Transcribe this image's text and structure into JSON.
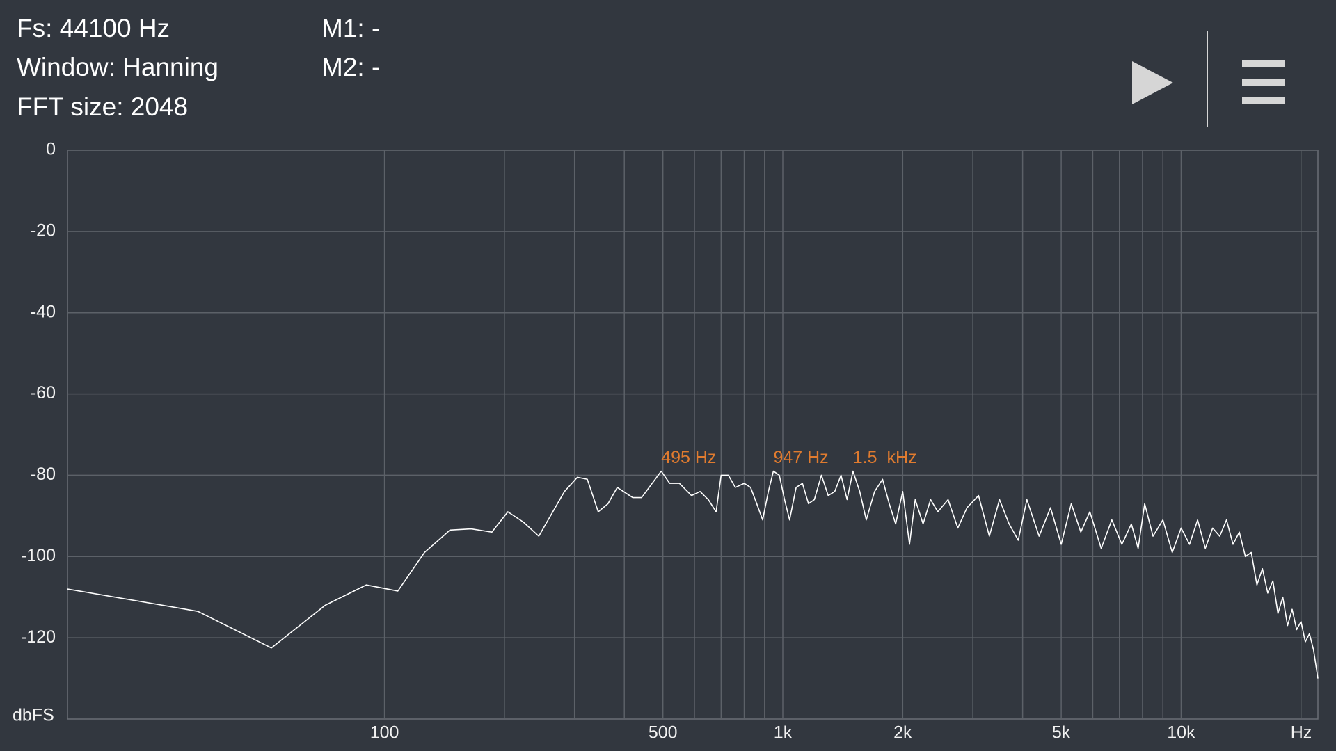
{
  "status": [
    "Fs: 44100 Hz",
    "Window: Hanning",
    "FFT size: 2048"
  ],
  "markers": [
    "M1: -",
    "M2: -"
  ],
  "chart_data": {
    "type": "line",
    "x_label": "Hz",
    "y_label": "dbFS",
    "xscale": "log",
    "xlim": [
      16,
      22050
    ],
    "ylim": [
      -140,
      0
    ],
    "xticks": [
      100,
      500,
      {
        "value": 1000,
        "label": "1k"
      },
      {
        "value": 2000,
        "label": "2k"
      },
      {
        "value": 5000,
        "label": "5k"
      },
      {
        "value": 10000,
        "label": "10k"
      }
    ],
    "xminor": [
      200,
      300,
      400,
      600,
      700,
      800,
      900,
      3000,
      4000,
      6000,
      7000,
      8000,
      9000,
      20000
    ],
    "yticks": [
      0,
      -20,
      -40,
      -60,
      -80,
      -100,
      -120
    ],
    "grid": true,
    "color": "#ffffff",
    "x": [
      16,
      34,
      52,
      71,
      90,
      108,
      126,
      146,
      165,
      186,
      204,
      223,
      244,
      283,
      305,
      323,
      344,
      364,
      384,
      420,
      442,
      495,
      520,
      550,
      590,
      620,
      650,
      680,
      700,
      730,
      760,
      800,
      830,
      860,
      890,
      920,
      947,
      980,
      1010,
      1040,
      1080,
      1120,
      1160,
      1200,
      1250,
      1300,
      1350,
      1400,
      1450,
      1500,
      1560,
      1620,
      1700,
      1780,
      1850,
      1920,
      2000,
      2080,
      2150,
      2250,
      2350,
      2450,
      2600,
      2750,
      2900,
      3100,
      3300,
      3500,
      3700,
      3900,
      4100,
      4400,
      4700,
      5000,
      5300,
      5600,
      5900,
      6300,
      6700,
      7100,
      7500,
      7800,
      8100,
      8500,
      9000,
      9500,
      10000,
      10500,
      11000,
      11500,
      12000,
      12500,
      13000,
      13500,
      14000,
      14500,
      15000,
      15500,
      16000,
      16500,
      17000,
      17500,
      18000,
      18500,
      19000,
      19500,
      20000,
      20500,
      21000,
      21500,
      22050
    ],
    "values": [
      -108,
      -113.5,
      -122.5,
      -112,
      -107,
      -108.5,
      -99,
      -93.5,
      -93.2,
      -94,
      -89,
      -91.5,
      -95,
      -84,
      -80.5,
      -81,
      -89,
      -87,
      -83,
      -85.5,
      -85.5,
      -79,
      -82,
      -82,
      -85,
      -84,
      -86,
      -89,
      -80,
      -80,
      -83,
      -82,
      -83,
      -87,
      -91,
      -84,
      -79,
      -80,
      -86,
      -91,
      -83,
      -82,
      -87,
      -86,
      -80,
      -85,
      -84,
      -80,
      -86,
      -79,
      -84,
      -91,
      -84,
      -81,
      -87,
      -92,
      -84,
      -97,
      -86,
      -92,
      -86,
      -89,
      -86,
      -93,
      -88,
      -85,
      -95,
      -86,
      -92,
      -96,
      -86,
      -95,
      -88,
      -97,
      -87,
      -94,
      -89,
      -98,
      -91,
      -97,
      -92,
      -98,
      -87,
      -95,
      -91,
      -99,
      -93,
      -97,
      -91,
      -98,
      -93,
      -95,
      -91,
      -97,
      -94,
      -100,
      -99,
      -107,
      -103,
      -109,
      -106,
      -114,
      -110,
      -117,
      -113,
      -118,
      -116,
      -121,
      -119,
      -123,
      -130
    ],
    "annotations": [
      {
        "x": 495,
        "y": -79,
        "label": "495 Hz"
      },
      {
        "x": 947,
        "y": -79,
        "label": "947 Hz"
      },
      {
        "x": 1500,
        "y": -79,
        "label": "1.5  kHz"
      }
    ]
  }
}
